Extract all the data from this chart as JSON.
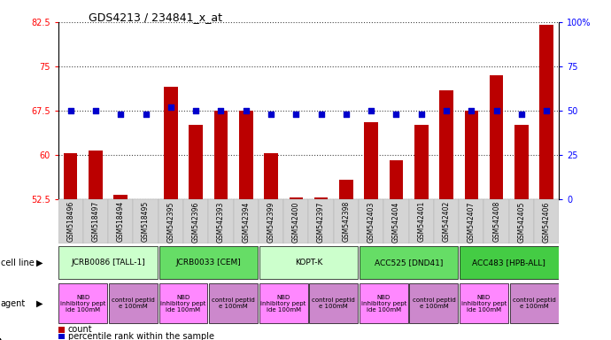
{
  "title": "GDS4213 / 234841_x_at",
  "samples": [
    "GSM518496",
    "GSM518497",
    "GSM518494",
    "GSM518495",
    "GSM542395",
    "GSM542396",
    "GSM542393",
    "GSM542394",
    "GSM542399",
    "GSM542400",
    "GSM542397",
    "GSM542398",
    "GSM542403",
    "GSM542404",
    "GSM542401",
    "GSM542402",
    "GSM542407",
    "GSM542408",
    "GSM542405",
    "GSM542406"
  ],
  "counts": [
    60.3,
    60.7,
    53.2,
    52.3,
    71.5,
    65.0,
    67.5,
    67.5,
    60.3,
    52.7,
    52.8,
    55.8,
    65.5,
    59.1,
    65.0,
    71.0,
    67.5,
    73.5,
    65.0,
    82.0
  ],
  "percentiles_right": [
    50,
    50,
    48,
    48,
    52,
    50,
    50,
    50,
    48,
    48,
    48,
    48,
    50,
    48,
    48,
    50,
    50,
    50,
    48,
    50
  ],
  "cell_lines": [
    {
      "label": "JCRB0086 [TALL-1]",
      "start": 0,
      "end": 4,
      "color": "#ccffcc"
    },
    {
      "label": "JCRB0033 [CEM]",
      "start": 4,
      "end": 8,
      "color": "#66dd66"
    },
    {
      "label": "KOPT-K",
      "start": 8,
      "end": 12,
      "color": "#ccffcc"
    },
    {
      "label": "ACC525 [DND41]",
      "start": 12,
      "end": 16,
      "color": "#66dd66"
    },
    {
      "label": "ACC483 [HPB-ALL]",
      "start": 16,
      "end": 20,
      "color": "#44cc44"
    }
  ],
  "agents": [
    {
      "label": "NBD\ninhibitory pept\nide 100mM",
      "start": 0,
      "end": 2,
      "color": "#ff88ff"
    },
    {
      "label": "control peptid\ne 100mM",
      "start": 2,
      "end": 4,
      "color": "#cc88cc"
    },
    {
      "label": "NBD\ninhibitory pept\nide 100mM",
      "start": 4,
      "end": 6,
      "color": "#ff88ff"
    },
    {
      "label": "control peptid\ne 100mM",
      "start": 6,
      "end": 8,
      "color": "#cc88cc"
    },
    {
      "label": "NBD\ninhibitory pept\nide 100mM",
      "start": 8,
      "end": 10,
      "color": "#ff88ff"
    },
    {
      "label": "control peptid\ne 100mM",
      "start": 10,
      "end": 12,
      "color": "#cc88cc"
    },
    {
      "label": "NBD\ninhibitory pept\nide 100mM",
      "start": 12,
      "end": 14,
      "color": "#ff88ff"
    },
    {
      "label": "control peptid\ne 100mM",
      "start": 14,
      "end": 16,
      "color": "#cc88cc"
    },
    {
      "label": "NBD\ninhibitory pept\nide 100mM",
      "start": 16,
      "end": 18,
      "color": "#ff88ff"
    },
    {
      "label": "control peptid\ne 100mM",
      "start": 18,
      "end": 20,
      "color": "#cc88cc"
    }
  ],
  "ylim_left": [
    52.5,
    82.5
  ],
  "yticks_left": [
    52.5,
    60.0,
    67.5,
    75.0,
    82.5
  ],
  "ylim_right": [
    0,
    100
  ],
  "yticks_right": [
    0,
    25,
    50,
    75,
    100
  ],
  "bar_color": "#bb0000",
  "scatter_color": "#0000cc",
  "bar_width": 0.55,
  "scatter_size": 18,
  "scatter_marker": "s",
  "grid_color": "#444444",
  "background_color": "#ffffff",
  "plot_bg": "#ffffff",
  "tick_bg": "#d8d8d8"
}
